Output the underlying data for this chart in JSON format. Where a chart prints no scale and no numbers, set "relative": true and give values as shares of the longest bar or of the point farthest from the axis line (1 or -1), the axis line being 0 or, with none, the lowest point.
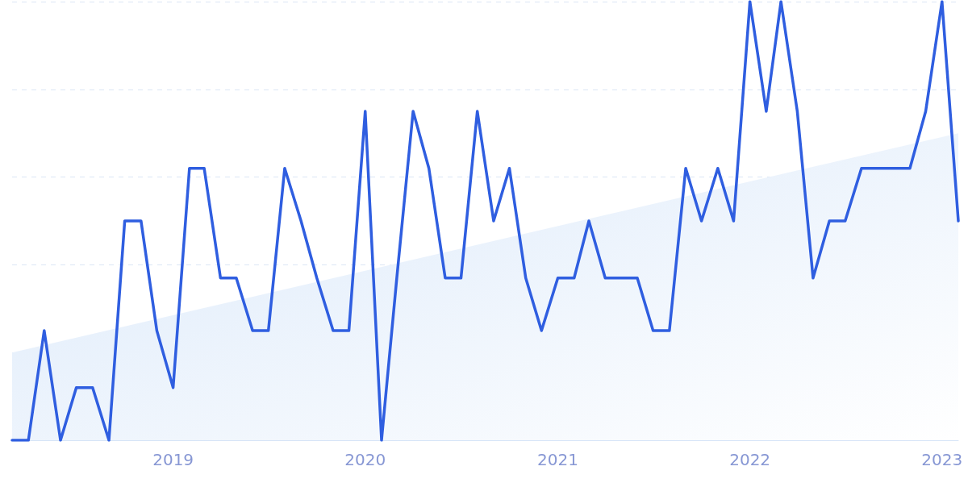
{
  "chart_data": {
    "type": "line",
    "relative": true,
    "grid": "y",
    "marker": "none",
    "line_style": "solid",
    "x": [
      "2018-03",
      "2018-04",
      "2018-05",
      "2018-06",
      "2018-07",
      "2018-08",
      "2018-09",
      "2018-10",
      "2018-11",
      "2018-12",
      "2019-01",
      "2019-02",
      "2019-03",
      "2019-04",
      "2019-05",
      "2019-06",
      "2019-07",
      "2019-08",
      "2019-09",
      "2019-10",
      "2019-11",
      "2019-12",
      "2020-01",
      "2020-02",
      "2020-03",
      "2020-04",
      "2020-05",
      "2020-06",
      "2020-07",
      "2020-08",
      "2020-09",
      "2020-10",
      "2020-11",
      "2020-12",
      "2021-01",
      "2021-02",
      "2021-03",
      "2021-04",
      "2021-05",
      "2021-06",
      "2021-07",
      "2021-08",
      "2021-09",
      "2021-10",
      "2021-11",
      "2021-12",
      "2022-01",
      "2022-02",
      "2022-03",
      "2022-04",
      "2022-05",
      "2022-06",
      "2022-07",
      "2022-08",
      "2022-09",
      "2022-10",
      "2022-11",
      "2022-12",
      "2023-01",
      "2023-02"
    ],
    "xlim": [
      "2018-03",
      "2023-02"
    ],
    "xticks": [
      "2019",
      "2020",
      "2021",
      "2022",
      "2023"
    ],
    "series": [
      {
        "type": "area",
        "color": "#dbe9fa",
        "x": [
          "2018-03",
          "2023-02"
        ],
        "values": [
          0.2,
          0.7
        ]
      },
      {
        "color": "#2f5ee0",
        "values": [
          0,
          0,
          0.25,
          0,
          0.12,
          0.12,
          0,
          0.5,
          0.5,
          0.25,
          0.12,
          0.62,
          0.62,
          0.37,
          0.37,
          0.25,
          0.25,
          0.62,
          0.5,
          0.37,
          0.25,
          0.25,
          0.75,
          0,
          0.37,
          0.75,
          0.62,
          0.37,
          0.37,
          0.75,
          0.5,
          0.62,
          0.37,
          0.25,
          0.37,
          0.37,
          0.5,
          0.37,
          0.37,
          0.37,
          0.25,
          0.25,
          0.62,
          0.5,
          0.62,
          0.5,
          1,
          0.75,
          1,
          0.75,
          0.37,
          0.5,
          0.5,
          0.62,
          0.62,
          0.62,
          0.62,
          0.75,
          1,
          0.5
        ]
      }
    ]
  }
}
